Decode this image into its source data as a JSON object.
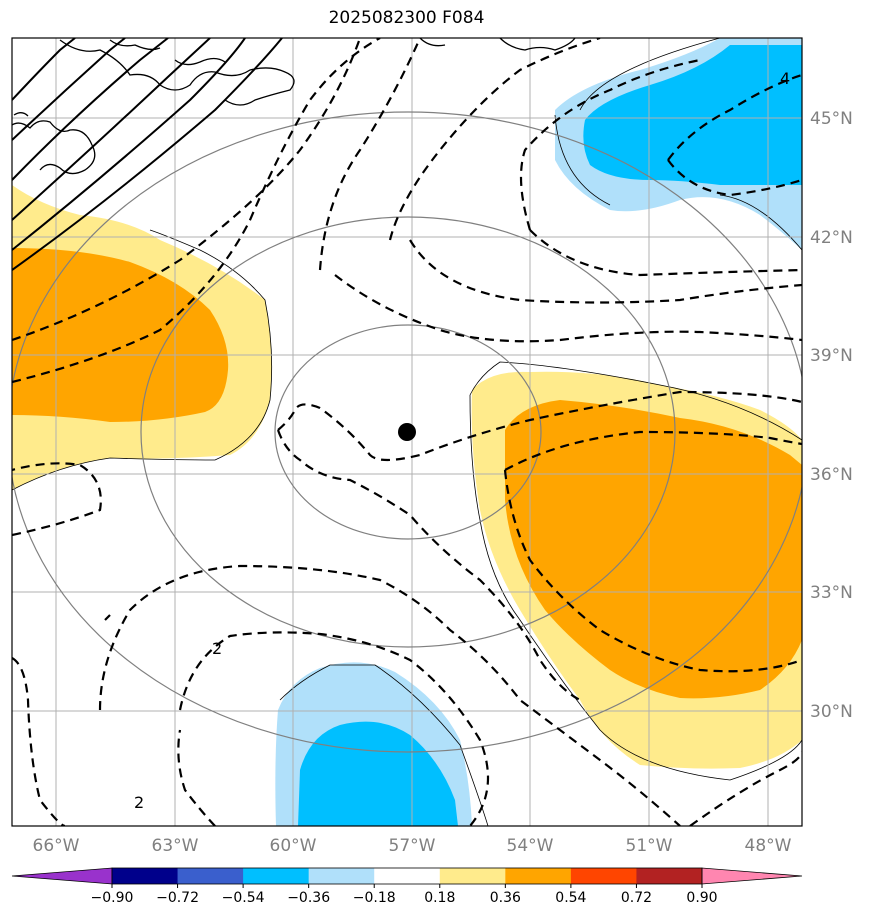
{
  "title": "2025082300 F084",
  "lon_labels": [
    "66°W",
    "63°W",
    "60°W",
    "57°W",
    "54°W",
    "51°W",
    "48°W"
  ],
  "lat_labels": [
    "45°N",
    "42°N",
    "39°N",
    "36°N",
    "33°N",
    "30°N"
  ],
  "colorbar": {
    "ticks": [
      "−0.90",
      "−0.72",
      "−0.54",
      "−0.36",
      "−0.18",
      "0.18",
      "0.36",
      "0.54",
      "0.72",
      "0.90"
    ],
    "colors": [
      "#9932cc",
      "#00008b",
      "#3a5fcd",
      "#00bfff",
      "#b0e0fa",
      "#ffffff",
      "#ffeb8c",
      "#ffa500",
      "#ff4500",
      "#b22222",
      "#ff86b0"
    ]
  },
  "contour_labels": [
    "4",
    "2",
    "2"
  ],
  "colors": {
    "light_yellow": "#ffeb8c",
    "orange": "#ffa500",
    "light_blue": "#b0e0fa",
    "deep_sky_blue": "#00bfff",
    "gridline": "#b0b0b0",
    "ring": "#808080"
  }
}
